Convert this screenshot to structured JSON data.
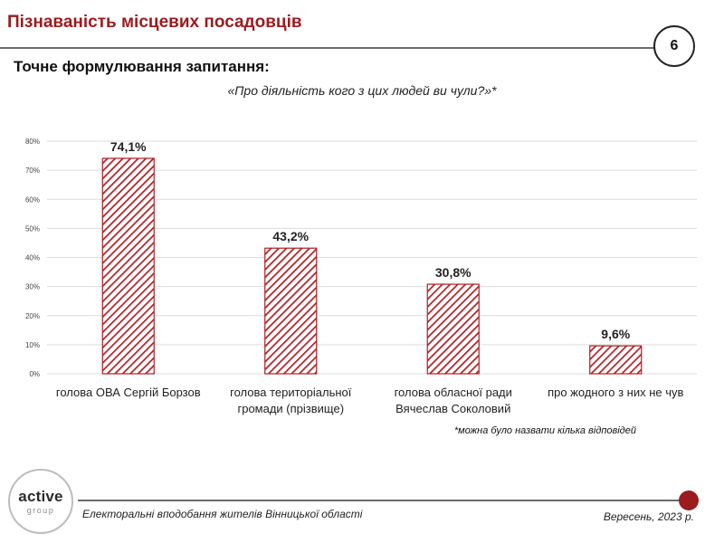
{
  "header": {
    "title": "Пізнаваність місцевих посадовців",
    "page_number": "6"
  },
  "question": {
    "heading": "Точне формулювання запитання:",
    "text": "«Про діяльність кого з цих людей ви чули?»*"
  },
  "chart_data": {
    "type": "bar",
    "categories": [
      [
        "голова ОВА Сергій Борзов"
      ],
      [
        "голова територіальної",
        "громади (прізвище)"
      ],
      [
        "голова обласної ради",
        "Вячеслав Соколовий"
      ],
      [
        "про жодного з них не чув"
      ]
    ],
    "values": [
      74.1,
      43.2,
      30.8,
      9.6
    ],
    "value_labels": [
      "74,1%",
      "43,2%",
      "30,8%",
      "9,6%"
    ],
    "ylim": [
      0,
      80
    ],
    "yticks": [
      0,
      10,
      20,
      30,
      40,
      50,
      60,
      70,
      80
    ],
    "ytick_labels": [
      "0%",
      "10%",
      "20%",
      "30%",
      "40%",
      "50%",
      "60%",
      "70%",
      "80%"
    ],
    "grid": true,
    "bar_color": "#b01e24",
    "bar_fill": "diagonal-hatch",
    "xlabel": "",
    "ylabel": ""
  },
  "footnote": "*можна було назвати кілька відповідей",
  "logo": {
    "word1": "active",
    "word2": "group"
  },
  "footer": {
    "left": "Електоральні вподобання жителів Вінницької області",
    "right": "Вересень, 2023 р."
  },
  "colors": {
    "accent": "#9b1b1f",
    "rule": "#6b6b6b"
  }
}
